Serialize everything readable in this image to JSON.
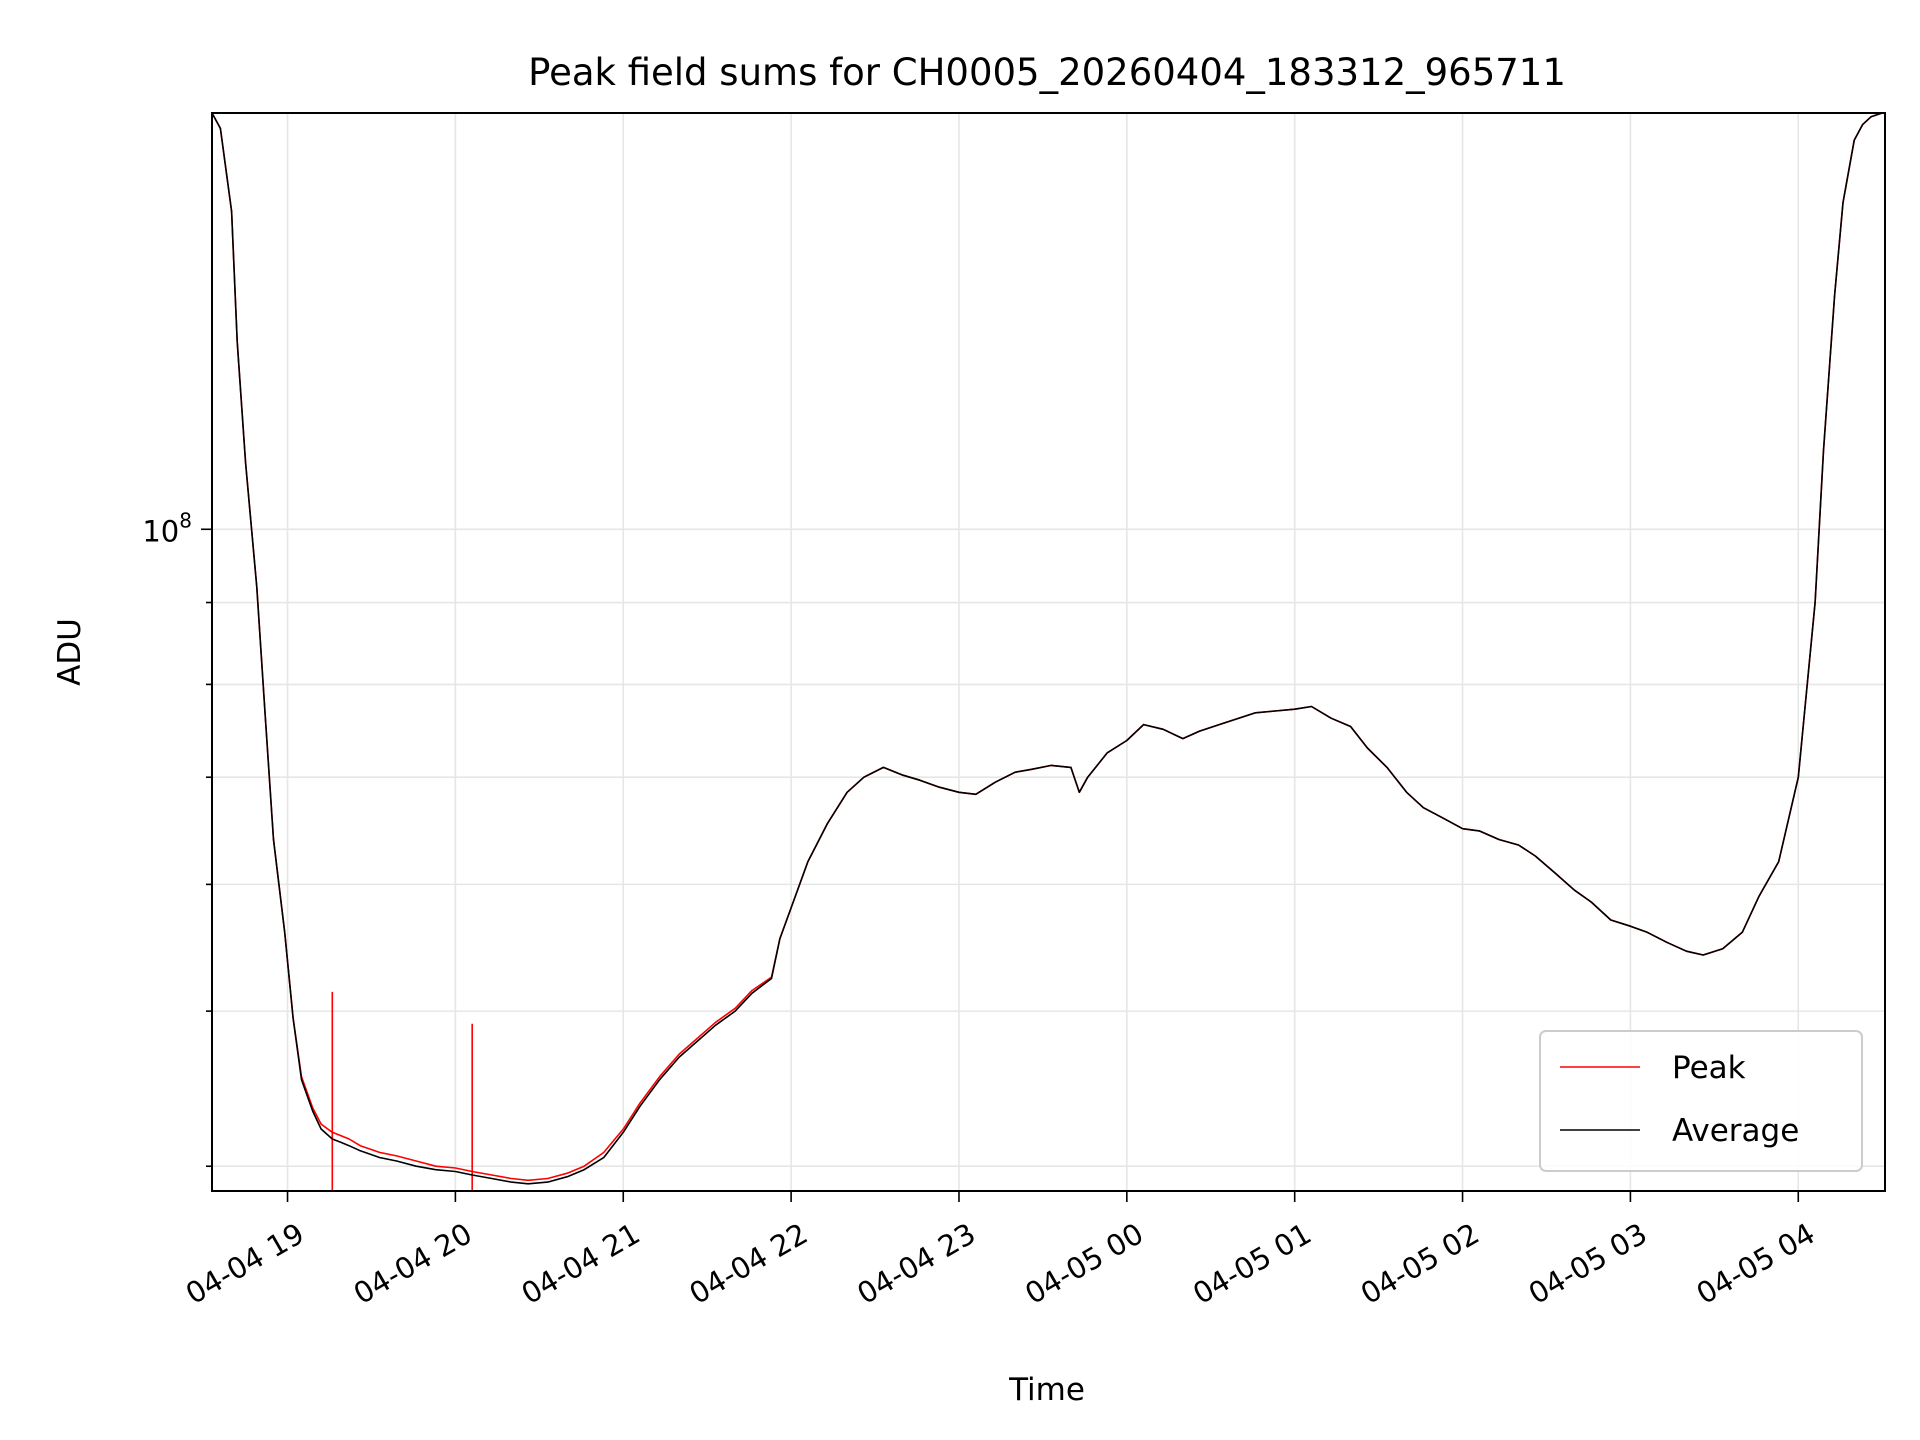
{
  "chart_data": {
    "type": "line",
    "title": "Peak field sums for CH0005_20260404_183312_965711",
    "xlabel": "Time",
    "ylabel": "ADU",
    "x_scale": "time",
    "y_scale": "log",
    "xlim": [
      "2026-04-04 18:33",
      "2026-04-05 04:31"
    ],
    "ylim": [
      38600000,
      182000000
    ],
    "x_ticks": [
      {
        "label": "04-04 19",
        "time": "2026-04-04 19:00"
      },
      {
        "label": "04-04 20",
        "time": "2026-04-04 20:00"
      },
      {
        "label": "04-04 21",
        "time": "2026-04-04 21:00"
      },
      {
        "label": "04-04 22",
        "time": "2026-04-04 22:00"
      },
      {
        "label": "04-04 23",
        "time": "2026-04-04 23:00"
      },
      {
        "label": "04-05 00",
        "time": "2026-04-05 00:00"
      },
      {
        "label": "04-05 01",
        "time": "2026-04-05 01:00"
      },
      {
        "label": "04-05 02",
        "time": "2026-04-05 02:00"
      },
      {
        "label": "04-05 03",
        "time": "2026-04-05 03:00"
      },
      {
        "label": "04-05 04",
        "time": "2026-04-05 04:00"
      }
    ],
    "y_major_ticks": [
      {
        "label_base": "10",
        "label_exp": "8",
        "value": 100000000
      }
    ],
    "y_minor_ticks": [
      40000000,
      50000000,
      60000000,
      70000000,
      80000000,
      90000000,
      200000000
    ],
    "grid": true,
    "legend": {
      "position": "bottom-right"
    },
    "series": [
      {
        "name": "Peak",
        "color": "#ff0000",
        "time": [
          "2026-04-04 18:33",
          "2026-04-04 18:36",
          "2026-04-04 18:40",
          "2026-04-04 18:42",
          "2026-04-04 18:45",
          "2026-04-04 18:49",
          "2026-04-04 18:52",
          "2026-04-04 18:55",
          "2026-04-04 18:59",
          "2026-04-04 19:02",
          "2026-04-04 19:05",
          "2026-04-04 19:09",
          "2026-04-04 19:12",
          "2026-04-04 19:16",
          "2026-04-04 19:19",
          "2026-04-04 19:22",
          "2026-04-04 19:26",
          "2026-04-04 19:33",
          "2026-04-04 19:39",
          "2026-04-04 19:46",
          "2026-04-04 19:53",
          "2026-04-04 20:00",
          "2026-04-04 20:06",
          "2026-04-04 20:13",
          "2026-04-04 20:20",
          "2026-04-04 20:26",
          "2026-04-04 20:33",
          "2026-04-04 20:40",
          "2026-04-04 20:46",
          "2026-04-04 20:53",
          "2026-04-04 21:00",
          "2026-04-04 21:06",
          "2026-04-04 21:13",
          "2026-04-04 21:20",
          "2026-04-04 21:26",
          "2026-04-04 21:33",
          "2026-04-04 21:40",
          "2026-04-04 21:46",
          "2026-04-04 21:53",
          "2026-04-04 21:56",
          "2026-04-04 22:00",
          "2026-04-04 22:06",
          "2026-04-04 22:13",
          "2026-04-04 22:20",
          "2026-04-04 22:26",
          "2026-04-04 22:33",
          "2026-04-04 22:40",
          "2026-04-04 22:46",
          "2026-04-04 22:53",
          "2026-04-04 23:00",
          "2026-04-04 23:06",
          "2026-04-04 23:13",
          "2026-04-04 23:20",
          "2026-04-04 23:26",
          "2026-04-04 23:33",
          "2026-04-04 23:40",
          "2026-04-04 23:43",
          "2026-04-04 23:46",
          "2026-04-04 23:53",
          "2026-04-05 00:00",
          "2026-04-05 00:06",
          "2026-04-05 00:13",
          "2026-04-05 00:20",
          "2026-04-05 00:26",
          "2026-04-05 00:33",
          "2026-04-05 00:40",
          "2026-04-05 00:46",
          "2026-04-05 00:53",
          "2026-04-05 01:00",
          "2026-04-05 01:06",
          "2026-04-05 01:13",
          "2026-04-05 01:20",
          "2026-04-05 01:26",
          "2026-04-05 01:33",
          "2026-04-05 01:40",
          "2026-04-05 01:46",
          "2026-04-05 01:53",
          "2026-04-05 02:00",
          "2026-04-05 02:06",
          "2026-04-05 02:13",
          "2026-04-05 02:20",
          "2026-04-05 02:26",
          "2026-04-05 02:33",
          "2026-04-05 02:40",
          "2026-04-05 02:46",
          "2026-04-05 02:53",
          "2026-04-05 03:00",
          "2026-04-05 03:06",
          "2026-04-05 03:13",
          "2026-04-05 03:20",
          "2026-04-05 03:26",
          "2026-04-05 03:33",
          "2026-04-05 03:40",
          "2026-04-05 03:46",
          "2026-04-05 03:53",
          "2026-04-05 04:00",
          "2026-04-05 04:06",
          "2026-04-05 04:09",
          "2026-04-05 04:13",
          "2026-04-05 04:16",
          "2026-04-05 04:20",
          "2026-04-05 04:23",
          "2026-04-05 04:26",
          "2026-04-05 04:30"
        ],
        "values": [
          182000000,
          178000000,
          158000000,
          131000000,
          110000000,
          92000000,
          76500000,
          64000000,
          56000000,
          49500000,
          45500000,
          43500000,
          42500000,
          42000000,
          41800000,
          41600000,
          41200000,
          40800000,
          40600000,
          40300000,
          40000000,
          39900000,
          39700000,
          39500000,
          39300000,
          39200000,
          39300000,
          39600000,
          40000000,
          40800000,
          42200000,
          43800000,
          45500000,
          47000000,
          48000000,
          49200000,
          50200000,
          51500000,
          52500000,
          55500000,
          58000000,
          62000000,
          65500000,
          68500000,
          70000000,
          71000000,
          70200000,
          69700000,
          69000000,
          68500000,
          68300000,
          69500000,
          70500000,
          70800000,
          71200000,
          71000000,
          68500000,
          70000000,
          72500000,
          73800000,
          75500000,
          75000000,
          74000000,
          74800000,
          75500000,
          76200000,
          76800000,
          77000000,
          77200000,
          77500000,
          76200000,
          75300000,
          73000000,
          71000000,
          68500000,
          67000000,
          66000000,
          65000000,
          64800000,
          64000000,
          63500000,
          62500000,
          61000000,
          59500000,
          58500000,
          57000000,
          56500000,
          56000000,
          55200000,
          54500000,
          54200000,
          54700000,
          56000000,
          59000000,
          62000000,
          70000000,
          90000000,
          112000000,
          140000000,
          160000000,
          175000000,
          179000000,
          181000000,
          182000000
        ],
        "spikes": [
          {
            "time": "2026-04-04 19:16",
            "value": 51400000
          },
          {
            "time": "2026-04-04 20:06",
            "value": 49100000
          }
        ]
      },
      {
        "name": "Average",
        "color": "#000000",
        "time": [
          "2026-04-04 18:33",
          "2026-04-04 18:36",
          "2026-04-04 18:40",
          "2026-04-04 18:42",
          "2026-04-04 18:45",
          "2026-04-04 18:49",
          "2026-04-04 18:52",
          "2026-04-04 18:55",
          "2026-04-04 18:59",
          "2026-04-04 19:02",
          "2026-04-04 19:05",
          "2026-04-04 19:09",
          "2026-04-04 19:12",
          "2026-04-04 19:16",
          "2026-04-04 19:19",
          "2026-04-04 19:22",
          "2026-04-04 19:26",
          "2026-04-04 19:33",
          "2026-04-04 19:39",
          "2026-04-04 19:46",
          "2026-04-04 19:53",
          "2026-04-04 20:00",
          "2026-04-04 20:06",
          "2026-04-04 20:13",
          "2026-04-04 20:20",
          "2026-04-04 20:26",
          "2026-04-04 20:33",
          "2026-04-04 20:40",
          "2026-04-04 20:46",
          "2026-04-04 20:53",
          "2026-04-04 21:00",
          "2026-04-04 21:06",
          "2026-04-04 21:13",
          "2026-04-04 21:20",
          "2026-04-04 21:26",
          "2026-04-04 21:33",
          "2026-04-04 21:40",
          "2026-04-04 21:46",
          "2026-04-04 21:53",
          "2026-04-04 21:56",
          "2026-04-04 22:00",
          "2026-04-04 22:06",
          "2026-04-04 22:13",
          "2026-04-04 22:20",
          "2026-04-04 22:26",
          "2026-04-04 22:33",
          "2026-04-04 22:40",
          "2026-04-04 22:46",
          "2026-04-04 22:53",
          "2026-04-04 23:00",
          "2026-04-04 23:06",
          "2026-04-04 23:13",
          "2026-04-04 23:20",
          "2026-04-04 23:26",
          "2026-04-04 23:33",
          "2026-04-04 23:40",
          "2026-04-04 23:43",
          "2026-04-04 23:46",
          "2026-04-04 23:53",
          "2026-04-05 00:00",
          "2026-04-05 00:06",
          "2026-04-05 00:13",
          "2026-04-05 00:20",
          "2026-04-05 00:26",
          "2026-04-05 00:33",
          "2026-04-05 00:40",
          "2026-04-05 00:46",
          "2026-04-05 00:53",
          "2026-04-05 01:00",
          "2026-04-05 01:06",
          "2026-04-05 01:13",
          "2026-04-05 01:20",
          "2026-04-05 01:26",
          "2026-04-05 01:33",
          "2026-04-05 01:40",
          "2026-04-05 01:46",
          "2026-04-05 01:53",
          "2026-04-05 02:00",
          "2026-04-05 02:06",
          "2026-04-05 02:13",
          "2026-04-05 02:20",
          "2026-04-05 02:26",
          "2026-04-05 02:33",
          "2026-04-05 02:40",
          "2026-04-05 02:46",
          "2026-04-05 02:53",
          "2026-04-05 03:00",
          "2026-04-05 03:06",
          "2026-04-05 03:13",
          "2026-04-05 03:20",
          "2026-04-05 03:26",
          "2026-04-05 03:33",
          "2026-04-05 03:40",
          "2026-04-05 03:46",
          "2026-04-05 03:53",
          "2026-04-05 04:00",
          "2026-04-05 04:06",
          "2026-04-05 04:09",
          "2026-04-05 04:13",
          "2026-04-05 04:16",
          "2026-04-05 04:20",
          "2026-04-05 04:23",
          "2026-04-05 04:26",
          "2026-04-05 04:30"
        ],
        "values": [
          182000000,
          178000000,
          158000000,
          131000000,
          110000000,
          92000000,
          76500000,
          64000000,
          56000000,
          49500000,
          45300000,
          43300000,
          42200000,
          41600000,
          41400000,
          41200000,
          40900000,
          40500000,
          40300000,
          40000000,
          39800000,
          39700000,
          39500000,
          39300000,
          39100000,
          39000000,
          39100000,
          39400000,
          39800000,
          40500000,
          42000000,
          43600000,
          45300000,
          46800000,
          47800000,
          49000000,
          50000000,
          51300000,
          52400000,
          55500000,
          58000000,
          62000000,
          65500000,
          68500000,
          70000000,
          71000000,
          70200000,
          69700000,
          69000000,
          68500000,
          68300000,
          69500000,
          70500000,
          70800000,
          71200000,
          71000000,
          68500000,
          70000000,
          72500000,
          73800000,
          75500000,
          75000000,
          74000000,
          74800000,
          75500000,
          76200000,
          76800000,
          77000000,
          77200000,
          77500000,
          76200000,
          75300000,
          73000000,
          71000000,
          68500000,
          67000000,
          66000000,
          65000000,
          64800000,
          64000000,
          63500000,
          62500000,
          61000000,
          59500000,
          58500000,
          57000000,
          56500000,
          56000000,
          55200000,
          54500000,
          54200000,
          54700000,
          56000000,
          59000000,
          62000000,
          70000000,
          90000000,
          112000000,
          140000000,
          160000000,
          175000000,
          179000000,
          181000000,
          182000000
        ]
      }
    ]
  }
}
